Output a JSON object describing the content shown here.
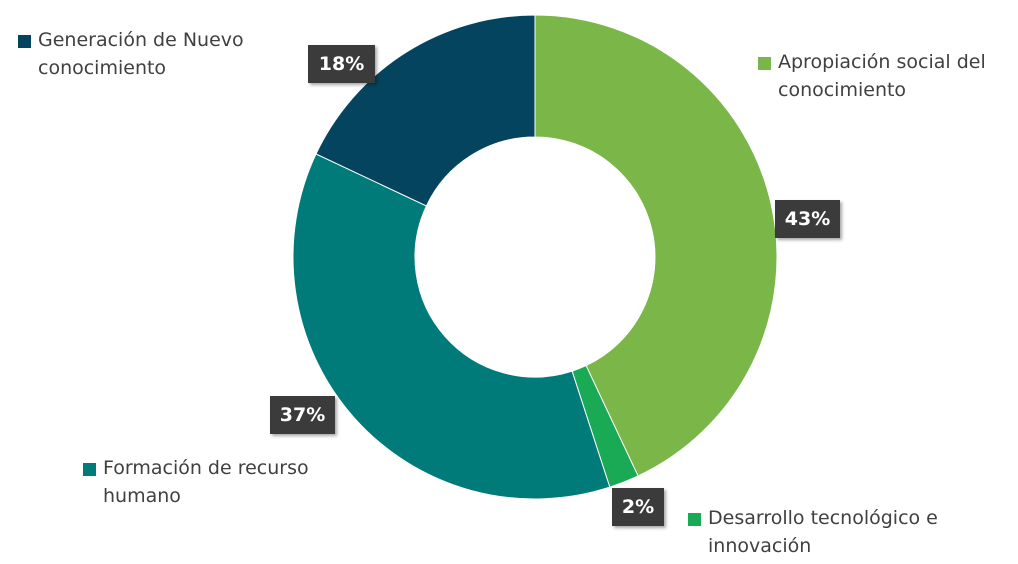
{
  "chart_data": {
    "type": "donut",
    "categories": [
      "Apropiación social del conocimiento",
      "Desarrollo tecnológico e innovación",
      "Formación de recurso humano",
      "Generación de Nuevo conocimiento"
    ],
    "values": [
      43,
      2,
      37,
      18
    ],
    "value_labels": [
      "43%",
      "2%",
      "37%",
      "18%"
    ],
    "colors": [
      "#7ab648",
      "#1aaa55",
      "#007b7a",
      "#05445f"
    ]
  }
}
